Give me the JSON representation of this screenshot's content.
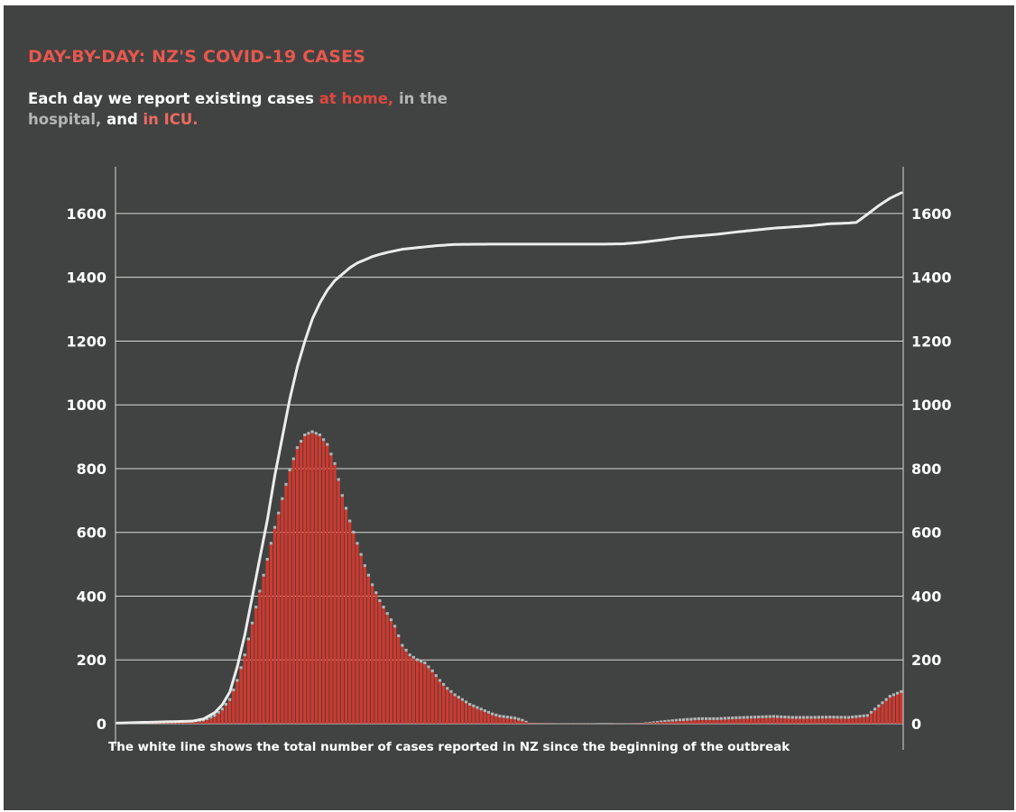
{
  "title": "DAY-BY-DAY: NZ'S COVID-19 CASES",
  "subtitle": {
    "part1": "Each day we report existing cases ",
    "home": "at home,",
    "part2": " ",
    "hospital": "in the hospital,",
    "part3": " and ",
    "icu": "in ICU."
  },
  "footnote": "The white line shows the total number of cases reported in NZ since the beginning of the outbreak",
  "colors": {
    "background": "#404341",
    "title": "#e8574f",
    "home": "#d2382f",
    "hospital": "#b5b5b5",
    "icu": "#ee6a62",
    "line": "#ececec",
    "grid": "#d8d8d8"
  },
  "chart_data": {
    "type": "bar",
    "title": "DAY-BY-DAY: NZ'S COVID-19 CASES",
    "xlabel": "",
    "ylabel": "",
    "ylim": [
      0,
      1700
    ],
    "yticks": [
      0,
      200,
      400,
      600,
      800,
      1000,
      1200,
      1400,
      1600
    ],
    "grid": true,
    "legend": "in subtitle",
    "days": 210,
    "series": [
      {
        "type": "bar",
        "keypoints": [
          [
            0,
            2
          ],
          [
            5,
            3
          ],
          [
            10,
            4
          ],
          [
            15,
            6
          ],
          [
            20,
            8
          ],
          [
            23,
            15
          ],
          [
            26,
            30
          ],
          [
            28,
            50
          ],
          [
            30,
            80
          ],
          [
            32,
            140
          ],
          [
            34,
            220
          ],
          [
            36,
            320
          ],
          [
            38,
            420
          ],
          [
            40,
            520
          ],
          [
            42,
            620
          ],
          [
            44,
            710
          ],
          [
            46,
            800
          ],
          [
            48,
            870
          ],
          [
            50,
            910
          ],
          [
            52,
            920
          ],
          [
            54,
            910
          ],
          [
            56,
            880
          ],
          [
            58,
            820
          ],
          [
            60,
            720
          ],
          [
            62,
            640
          ],
          [
            64,
            570
          ],
          [
            66,
            500
          ],
          [
            68,
            440
          ],
          [
            70,
            390
          ],
          [
            72,
            350
          ],
          [
            74,
            310
          ],
          [
            76,
            250
          ],
          [
            78,
            220
          ],
          [
            80,
            205
          ],
          [
            82,
            195
          ],
          [
            84,
            170
          ],
          [
            86,
            140
          ],
          [
            88,
            115
          ],
          [
            90,
            95
          ],
          [
            92,
            80
          ],
          [
            94,
            65
          ],
          [
            96,
            55
          ],
          [
            98,
            45
          ],
          [
            100,
            35
          ],
          [
            102,
            28
          ],
          [
            104,
            25
          ],
          [
            106,
            22
          ],
          [
            108,
            15
          ],
          [
            110,
            3
          ],
          [
            115,
            2
          ],
          [
            120,
            1
          ],
          [
            125,
            1
          ],
          [
            130,
            0
          ],
          [
            135,
            1
          ],
          [
            140,
            3
          ],
          [
            145,
            10
          ],
          [
            150,
            16
          ],
          [
            155,
            20
          ],
          [
            160,
            20
          ],
          [
            165,
            23
          ],
          [
            170,
            25
          ],
          [
            175,
            27
          ],
          [
            180,
            24
          ],
          [
            185,
            24
          ],
          [
            190,
            25
          ],
          [
            195,
            24
          ],
          [
            200,
            30
          ],
          [
            203,
            60
          ],
          [
            206,
            90
          ],
          [
            209,
            105
          ]
        ]
      },
      {
        "type": "line",
        "keypoints": [
          [
            0,
            2
          ],
          [
            10,
            5
          ],
          [
            20,
            8
          ],
          [
            23,
            15
          ],
          [
            26,
            35
          ],
          [
            28,
            60
          ],
          [
            30,
            100
          ],
          [
            32,
            180
          ],
          [
            34,
            280
          ],
          [
            36,
            400
          ],
          [
            38,
            520
          ],
          [
            40,
            640
          ],
          [
            42,
            780
          ],
          [
            44,
            900
          ],
          [
            46,
            1020
          ],
          [
            48,
            1120
          ],
          [
            50,
            1200
          ],
          [
            52,
            1270
          ],
          [
            54,
            1320
          ],
          [
            56,
            1360
          ],
          [
            58,
            1390
          ],
          [
            60,
            1410
          ],
          [
            62,
            1430
          ],
          [
            64,
            1445
          ],
          [
            66,
            1455
          ],
          [
            68,
            1465
          ],
          [
            70,
            1472
          ],
          [
            72,
            1478
          ],
          [
            74,
            1483
          ],
          [
            76,
            1488
          ],
          [
            80,
            1493
          ],
          [
            85,
            1499
          ],
          [
            90,
            1503
          ],
          [
            100,
            1504
          ],
          [
            110,
            1504
          ],
          [
            120,
            1504
          ],
          [
            130,
            1504
          ],
          [
            135,
            1505
          ],
          [
            140,
            1510
          ],
          [
            145,
            1517
          ],
          [
            150,
            1525
          ],
          [
            155,
            1530
          ],
          [
            160,
            1535
          ],
          [
            165,
            1542
          ],
          [
            170,
            1548
          ],
          [
            175,
            1554
          ],
          [
            180,
            1558
          ],
          [
            185,
            1562
          ],
          [
            190,
            1568
          ],
          [
            195,
            1570
          ],
          [
            197,
            1572
          ],
          [
            200,
            1598
          ],
          [
            203,
            1625
          ],
          [
            206,
            1648
          ],
          [
            209,
            1665
          ]
        ]
      }
    ]
  }
}
